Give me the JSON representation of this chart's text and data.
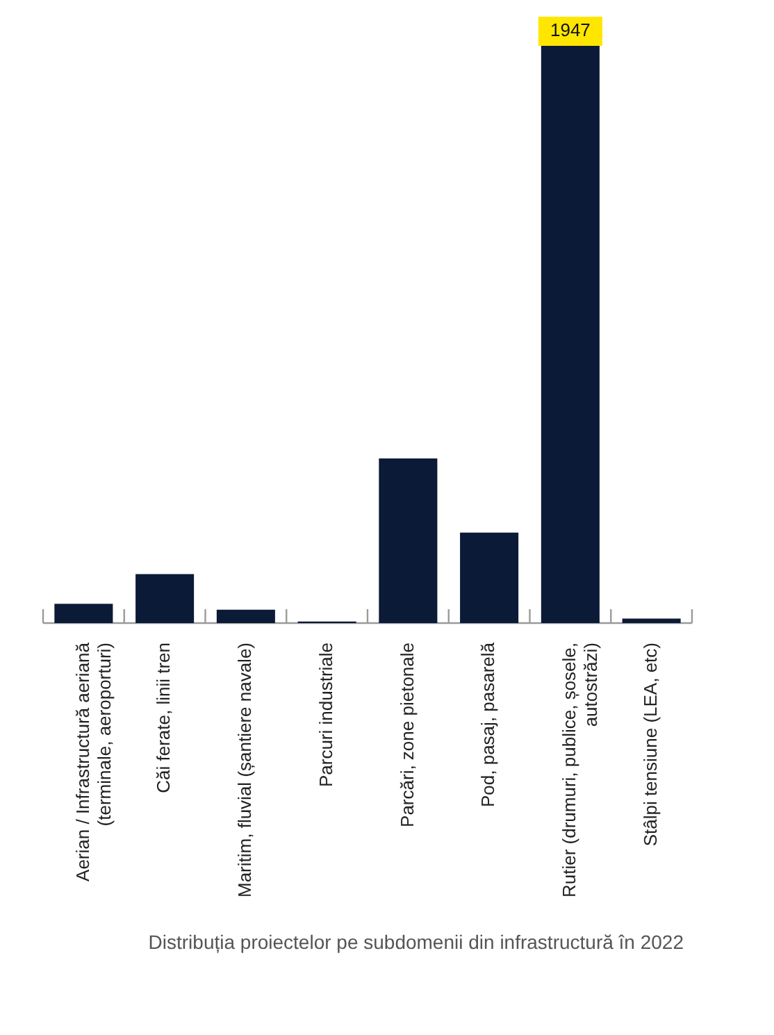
{
  "chart_data": {
    "type": "bar",
    "categories": [
      "Aerian / Infrastructură aeriană\n(terminale, aeroporturi)",
      "Căi ferate, linii tren",
      "Maritim, fluvial (șantiere navale)",
      "Parcuri industriale",
      "Parcări, zone pietonale",
      "Pod, pasaj, pasarelă",
      "Rutier (drumuri, publice, șosele,\nautostrăzi)",
      "Stâlpi tensiune (LEA, etc)"
    ],
    "values": [
      65,
      165,
      45,
      5,
      555,
      305,
      1947,
      15
    ],
    "value_labels": [
      null,
      null,
      null,
      null,
      null,
      null,
      "1947",
      null
    ],
    "color": "#0b1a36",
    "grid": false,
    "legend": false,
    "tick_labels": "x",
    "annotations": [
      "Distribuția proiectelor pe subdomenii din infrastructură în 2022"
    ]
  }
}
